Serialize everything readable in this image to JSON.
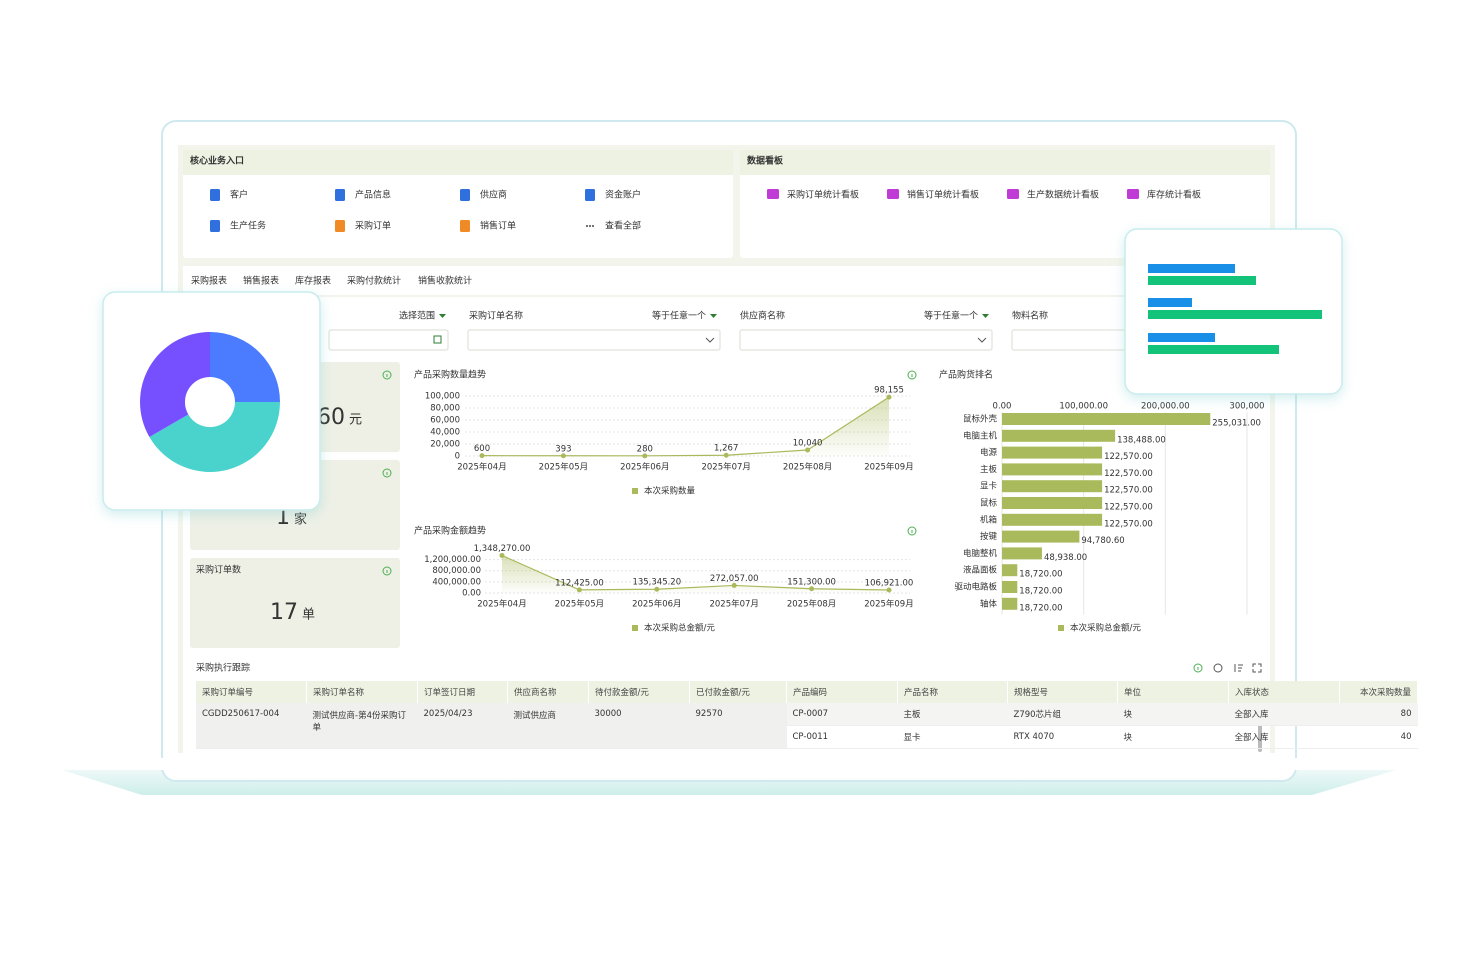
{
  "entry": {
    "title": "核心业务入口",
    "items": [
      "客户",
      "产品信息",
      "供应商",
      "资金账户",
      "生产任务",
      "采购订单",
      "销售订单",
      "查看全部"
    ]
  },
  "dashboard": {
    "title": "数据看板",
    "items": [
      "采购订单统计看板",
      "销售订单统计看板",
      "生产数据统计看板",
      "库存统计看板"
    ]
  },
  "tabs": [
    "采购报表",
    "销售报表",
    "库存报表",
    "采购付款统计",
    "销售收款统计"
  ],
  "filters": [
    {
      "mode": "选择范围"
    },
    {
      "label": "采购订单名称",
      "mode": "等于任意一个"
    },
    {
      "label": "供应商名称",
      "mode": "等于任意一个"
    },
    {
      "label": "物料名称"
    }
  ],
  "kpis": [
    {
      "value": "60",
      "unit": "元"
    },
    {
      "value": "1",
      "unit": "家"
    },
    {
      "title": "采购订单数",
      "value": "17",
      "unit": "单"
    }
  ],
  "chart_data": [
    {
      "type": "line",
      "title": "产品采购数量趋势",
      "categories": [
        "2025年04月",
        "2025年05月",
        "2025年06月",
        "2025年07月",
        "2025年08月",
        "2025年09月"
      ],
      "series": [
        {
          "name": "本次采购数量",
          "color": "#a9ba5c",
          "values": [
            600,
            393,
            280,
            1267,
            10040,
            98155
          ],
          "value_labels": [
            "600",
            "393",
            "280",
            "1,267",
            "10,040",
            "98,155"
          ]
        }
      ],
      "ylim": [
        0,
        105000
      ],
      "yticks": [
        0,
        {
          "value": 20000,
          "label": "20,000"
        },
        {
          "value": 40000,
          "label": "40,000"
        },
        {
          "value": 60000,
          "label": "60,000"
        },
        {
          "value": 80000,
          "label": "80,000"
        },
        {
          "value": 100000,
          "label": "100,000"
        }
      ],
      "grid": true
    },
    {
      "type": "line",
      "title": "产品采购金额趋势",
      "categories": [
        "2025年04月",
        "2025年05月",
        "2025年06月",
        "2025年07月",
        "2025年08月",
        "2025年09月"
      ],
      "series": [
        {
          "name": "本次采购总金额/元",
          "color": "#a9ba5c",
          "values": [
            1348270,
            112425,
            135345.2,
            272057,
            151300,
            106921
          ],
          "value_labels": [
            "1,348,270.00",
            "112,425.00",
            "135,345.20",
            "272,057.00",
            "151,300.00",
            "106,921.00"
          ]
        }
      ],
      "ylim": [
        0,
        1400000
      ],
      "yticks": [
        {
          "value": 0,
          "label": "0.00"
        },
        {
          "value": 400000,
          "label": "400,000.00"
        },
        {
          "value": 800000,
          "label": "800,000.00"
        },
        {
          "value": 1200000,
          "label": "1,200,000.00"
        }
      ],
      "grid": true
    },
    {
      "type": "hbar",
      "title": "产品购货排名",
      "categories": [
        "鼠标外壳",
        "电脑主机",
        "电源",
        "主板",
        "显卡",
        "鼠标",
        "机箱",
        "按键",
        "电脑整机",
        "液晶面板",
        "驱动电路板",
        "轴体"
      ],
      "series": [
        {
          "name": "本次采购总金额/元",
          "color": "#a9ba5c",
          "values": [
            255031,
            138488,
            122570,
            122570,
            122570,
            122570,
            122570,
            94780.6,
            48938,
            18720,
            18720,
            18720
          ],
          "value_labels": [
            "255,031.00",
            "138,488.00",
            "122,570.00",
            "122,570.00",
            "122,570.00",
            "122,570.00",
            "122,570.00",
            "94,780.60",
            "48,938.00",
            "18,720.00",
            "18,720.00",
            "18,720.00"
          ]
        }
      ],
      "xlim": [
        0,
        300000
      ],
      "xticks": [
        {
          "value": 0,
          "label": "0.00"
        },
        {
          "value": 100000,
          "label": "100,000.00"
        },
        {
          "value": 200000,
          "label": "200,000.00"
        },
        {
          "value": 300000,
          "label": "300,000"
        }
      ],
      "grid": true
    }
  ],
  "table": {
    "title": "采购执行跟踪",
    "columns": [
      "采购订单编号",
      "采购订单名称",
      "订单签订日期",
      "供应商名称",
      "待付款金额/元",
      "已付款金额/元",
      "产品编码",
      "产品名称",
      "规格型号",
      "单位",
      "入库状态",
      "本次采购数量"
    ],
    "rows": [
      {
        "order": [
          "CGDD250617-004",
          "测试供应商-第4份采购订单",
          "2025/04/23",
          "测试供应商",
          30000,
          92570
        ],
        "items": [
          [
            "CP-0007",
            "主板",
            "Z790芯片组",
            "块",
            "全部入库",
            80
          ],
          [
            "CP-0011",
            "显卡",
            "RTX 4070",
            "块",
            "全部入库",
            40
          ]
        ]
      }
    ]
  }
}
